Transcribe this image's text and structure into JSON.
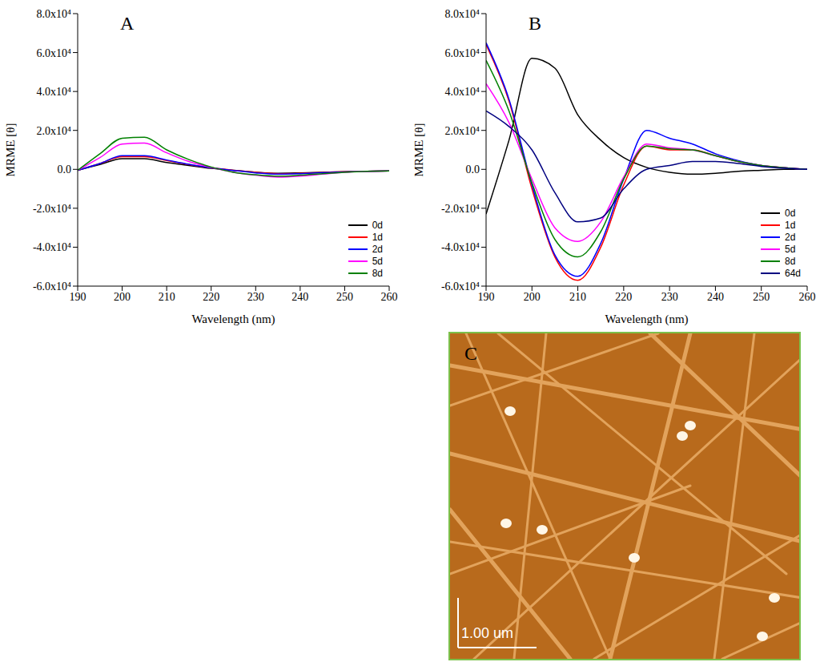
{
  "chart_data": [
    {
      "panel": "A",
      "type": "line",
      "x_label": "Wavelength (nm)",
      "y_label": "MRME [θ]",
      "xlim": [
        190,
        260
      ],
      "xticks": [
        190,
        200,
        210,
        220,
        230,
        240,
        250,
        260
      ],
      "ylim": [
        -60000,
        80000
      ],
      "yticks": [
        {
          "value": -60000,
          "label": "-6.0x10⁴"
        },
        {
          "value": -40000,
          "label": "-4.0x10⁴"
        },
        {
          "value": -20000,
          "label": "-2.0x10⁴"
        },
        {
          "value": 0,
          "label": "0.0"
        },
        {
          "value": 20000,
          "label": "2.0x10⁴"
        },
        {
          "value": 40000,
          "label": "4.0x10⁴"
        },
        {
          "value": 60000,
          "label": "6.0x10⁴"
        },
        {
          "value": 80000,
          "label": "8.0x10⁴"
        }
      ],
      "grid": false,
      "legend": "lower right",
      "x": [
        190,
        195,
        200,
        205,
        210,
        215,
        220,
        225,
        230,
        235,
        240,
        245,
        250,
        255,
        260
      ],
      "series": [
        {
          "name": "0d",
          "color": "#000000",
          "values": [
            -500,
            2500,
            5500,
            5500,
            3500,
            2000,
            500,
            -500,
            -1500,
            -2000,
            -1800,
            -1500,
            -1200,
            -1000,
            -800
          ]
        },
        {
          "name": "1d",
          "color": "#ff0000",
          "values": [
            -500,
            3000,
            6500,
            6500,
            4500,
            2500,
            800,
            -500,
            -1500,
            -2200,
            -2000,
            -1600,
            -1200,
            -1000,
            -800
          ]
        },
        {
          "name": "2d",
          "color": "#0000ff",
          "values": [
            -500,
            3000,
            7000,
            7000,
            4800,
            2600,
            800,
            -600,
            -1800,
            -2500,
            -2200,
            -1700,
            -1300,
            -1000,
            -800
          ]
        },
        {
          "name": "5d",
          "color": "#ff00ff",
          "values": [
            -500,
            6000,
            13000,
            13500,
            8500,
            4000,
            1000,
            -1500,
            -3000,
            -4000,
            -3500,
            -2500,
            -1500,
            -1000,
            -800
          ]
        },
        {
          "name": "8d",
          "color": "#008000",
          "values": [
            -500,
            8000,
            16000,
            16500,
            10000,
            5000,
            1200,
            -1500,
            -2800,
            -3500,
            -3000,
            -2200,
            -1500,
            -1000,
            -800
          ]
        }
      ]
    },
    {
      "panel": "B",
      "type": "line",
      "x_label": "Wavelength (nm)",
      "y_label": "MRME [θ]",
      "xlim": [
        190,
        260
      ],
      "xticks": [
        190,
        200,
        210,
        220,
        230,
        240,
        250,
        260
      ],
      "ylim": [
        -60000,
        80000
      ],
      "yticks": [
        {
          "value": -60000,
          "label": "-6.0x10⁴"
        },
        {
          "value": -40000,
          "label": "-4.0x10⁴"
        },
        {
          "value": -20000,
          "label": "-2.0x10⁴"
        },
        {
          "value": 0,
          "label": "0.0"
        },
        {
          "value": 20000,
          "label": "2.0x10⁴"
        },
        {
          "value": 40000,
          "label": "4.0x10⁴"
        },
        {
          "value": 60000,
          "label": "6.0x10⁴"
        },
        {
          "value": 80000,
          "label": "8.0x10⁴"
        }
      ],
      "grid": false,
      "legend": "lower right",
      "x": [
        190,
        195,
        200,
        205,
        210,
        215,
        220,
        225,
        230,
        235,
        240,
        245,
        250,
        255,
        260
      ],
      "series": [
        {
          "name": "0d",
          "color": "#000000",
          "values": [
            -23000,
            15000,
            57000,
            52000,
            28000,
            15000,
            6000,
            1000,
            -1500,
            -2500,
            -2000,
            -1000,
            -500,
            0,
            0
          ]
        },
        {
          "name": "1d",
          "color": "#ff0000",
          "values": [
            64000,
            35000,
            -10000,
            -45000,
            -57000,
            -40000,
            -8000,
            12000,
            10000,
            10000,
            7000,
            4000,
            2000,
            800,
            0
          ]
        },
        {
          "name": "2d",
          "color": "#0000ff",
          "values": [
            65000,
            36000,
            -8000,
            -44000,
            -55000,
            -38000,
            -5000,
            20000,
            16000,
            13000,
            8000,
            4500,
            2000,
            800,
            0
          ]
        },
        {
          "name": "5d",
          "color": "#ff00ff",
          "values": [
            44000,
            24000,
            -5000,
            -30000,
            -37000,
            -27000,
            -4000,
            13000,
            11000,
            10000,
            7000,
            4000,
            2000,
            800,
            0
          ]
        },
        {
          "name": "8d",
          "color": "#008000",
          "values": [
            56000,
            30000,
            -7000,
            -36000,
            -45000,
            -32000,
            -5000,
            12000,
            10500,
            10000,
            7000,
            4000,
            2000,
            800,
            0
          ]
        },
        {
          "name": "64d",
          "color": "#000080",
          "values": [
            30000,
            22000,
            10000,
            -12000,
            -27000,
            -25000,
            -10000,
            0,
            2000,
            4000,
            4000,
            3000,
            1500,
            500,
            0
          ]
        }
      ]
    }
  ],
  "image_panel": {
    "panel": "C",
    "scale_bar": "1.00 um"
  }
}
